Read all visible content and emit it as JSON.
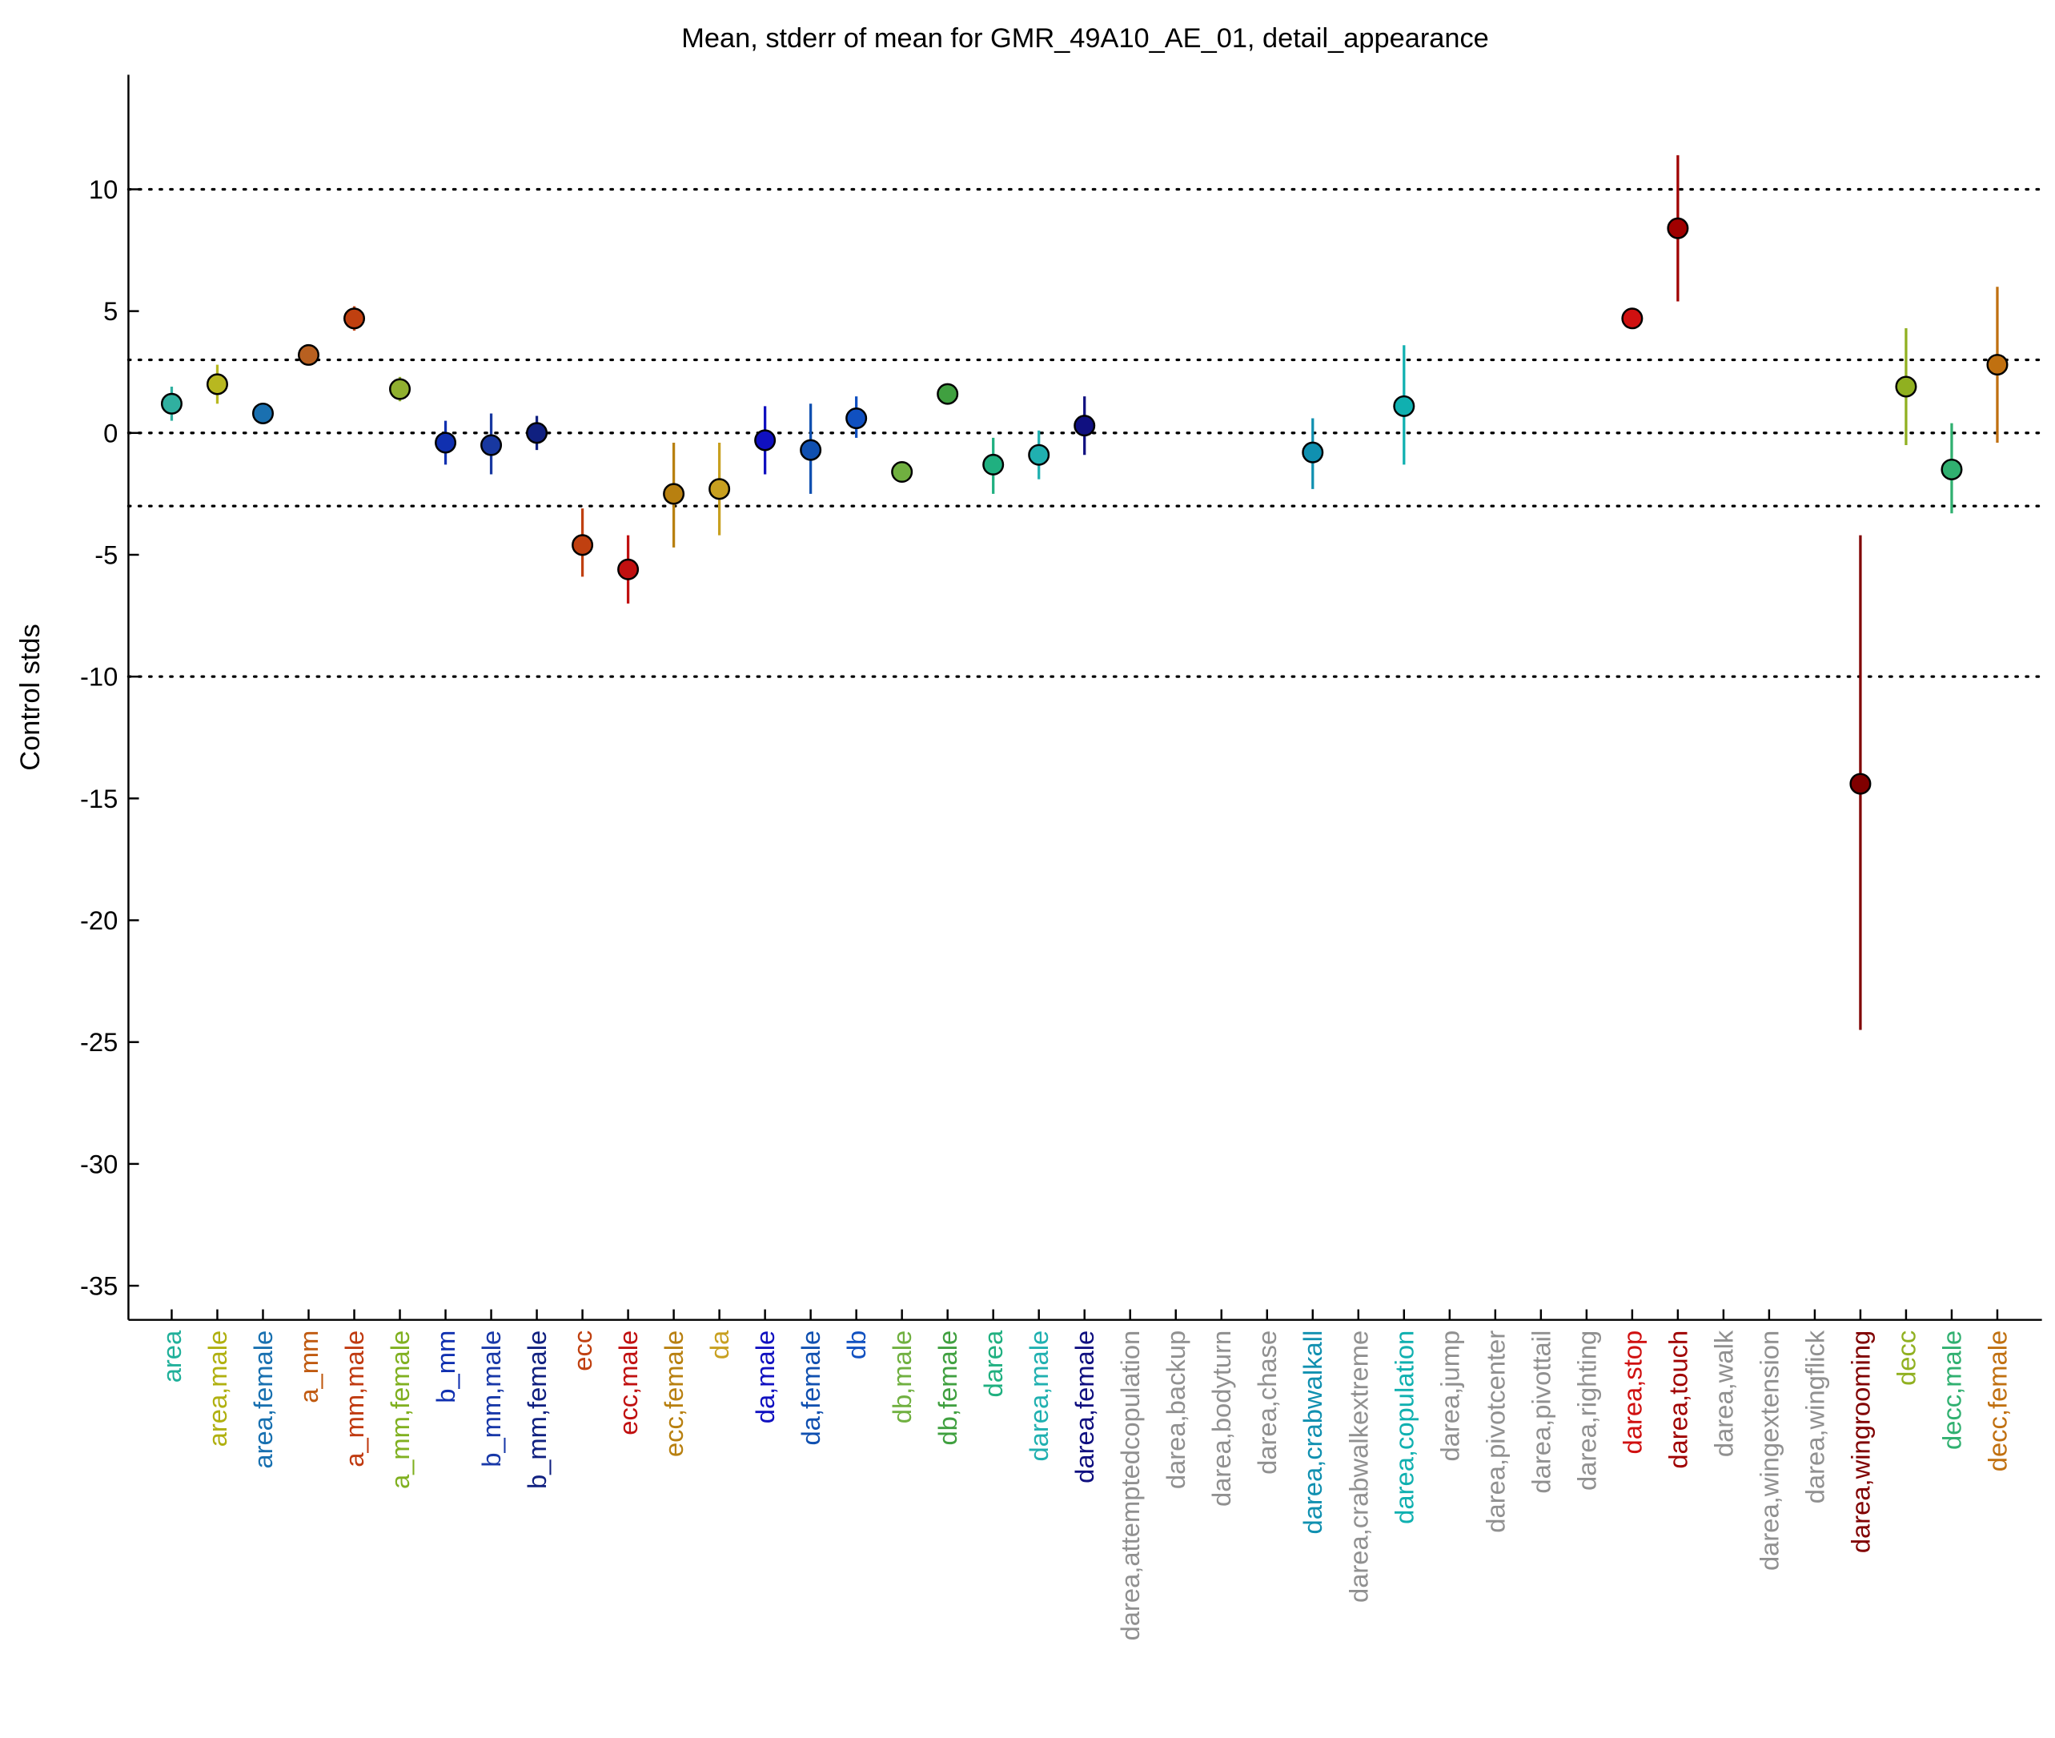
{
  "chart_data": {
    "type": "errorbar",
    "title": "Mean, stderr of mean for GMR_49A10_AE_01, detail_appearance",
    "ylabel": "Control stds",
    "categories": [
      "area",
      "area,male",
      "area,female",
      "a_mm",
      "a_mm,male",
      "a_mm,female",
      "b_mm",
      "b_mm,male",
      "b_mm,female",
      "ecc",
      "ecc,male",
      "ecc,female",
      "da",
      "da,male",
      "da,female",
      "db",
      "db,male",
      "db,female",
      "darea",
      "darea,male",
      "darea,female",
      "darea,attemptedcopulation",
      "darea,backup",
      "darea,bodyturn",
      "darea,chase",
      "darea,crabwalkall",
      "darea,crabwalkextreme",
      "darea,copulation",
      "darea,jump",
      "darea,pivotcenter",
      "darea,pivottail",
      "darea,righting",
      "darea,stop",
      "darea,touch",
      "darea,walk",
      "darea,wingextension",
      "darea,wingflick",
      "darea,wingrooming",
      "decc",
      "decc,male",
      "decc,female"
    ],
    "label_colors": [
      "#20b09a",
      "#b0b010",
      "#1870b0",
      "#c05a10",
      "#c03a10",
      "#80b020",
      "#1030b0",
      "#1838a8",
      "#102080",
      "#c04010",
      "#c01010",
      "#b88010",
      "#c8a020",
      "#1010c0",
      "#1050b0",
      "#1050c0",
      "#70b040",
      "#40a040",
      "#20b080",
      "#20b0b0",
      "#101080",
      "#909090",
      "#909090",
      "#909090",
      "#909090",
      "#1090b0",
      "#909090",
      "#10b0b0",
      "#909090",
      "#909090",
      "#909090",
      "#909090",
      "#d01010",
      "#a00000",
      "#909090",
      "#909090",
      "#909090",
      "#800000",
      "#90b020",
      "#30b070",
      "#c07010"
    ],
    "series": [
      {
        "name": "mean",
        "colors": [
          "#30b0a0",
          "#b8b820",
          "#1a70b0",
          "#b86020",
          "#c04010",
          "#90b030",
          "#1030b0",
          "#1838a0",
          "#102080",
          "#c04010",
          "#c01010",
          "#b88010",
          "#c8a020",
          "#1010c0",
          "#1050b0",
          "#1050c0",
          "#70b040",
          "#40a040",
          "#20b080",
          "#20b0b0",
          "#101080",
          null,
          null,
          null,
          null,
          "#1090b0",
          null,
          "#10b0b0",
          null,
          null,
          null,
          null,
          "#d01010",
          "#a00000",
          null,
          null,
          null,
          "#800000",
          "#90b020",
          "#30b070",
          "#c07010"
        ],
        "values": [
          1.2,
          2.0,
          0.8,
          3.2,
          4.7,
          1.8,
          -0.4,
          -0.5,
          0.0,
          -4.6,
          -5.6,
          -2.5,
          -2.3,
          -0.3,
          -0.7,
          0.6,
          -1.6,
          1.6,
          -1.3,
          -0.9,
          0.3,
          null,
          null,
          null,
          null,
          -0.8,
          null,
          1.1,
          null,
          null,
          null,
          null,
          4.7,
          8.4,
          null,
          null,
          null,
          -14.4,
          1.9,
          -1.5,
          2.8
        ],
        "lower": [
          0.5,
          1.2,
          0.4,
          2.8,
          4.2,
          1.3,
          -1.3,
          -1.7,
          -0.7,
          -5.9,
          -7.0,
          -4.7,
          -4.2,
          -1.7,
          -2.5,
          -0.2,
          -2.0,
          1.3,
          -2.5,
          -1.9,
          -0.9,
          null,
          null,
          null,
          null,
          -2.3,
          null,
          -1.3,
          null,
          null,
          null,
          null,
          4.6,
          5.4,
          null,
          null,
          null,
          -24.5,
          -0.5,
          -3.3,
          -0.4
        ],
        "upper": [
          1.9,
          2.8,
          1.2,
          3.6,
          5.2,
          2.3,
          0.5,
          0.8,
          0.7,
          -3.1,
          -4.2,
          -0.4,
          -0.4,
          1.1,
          1.2,
          1.5,
          -1.2,
          1.9,
          -0.2,
          0.1,
          1.5,
          null,
          null,
          null,
          null,
          0.6,
          null,
          3.6,
          null,
          null,
          null,
          null,
          4.9,
          11.4,
          null,
          null,
          null,
          -4.2,
          4.3,
          0.4,
          6.0
        ]
      }
    ],
    "ylim": [
      -36.4,
      14.7
    ],
    "yticks": [
      -35,
      -30,
      -25,
      -20,
      -15,
      -10,
      -5,
      0,
      5,
      10
    ],
    "reference_lines": [
      -10,
      -3,
      0,
      3,
      10
    ]
  }
}
